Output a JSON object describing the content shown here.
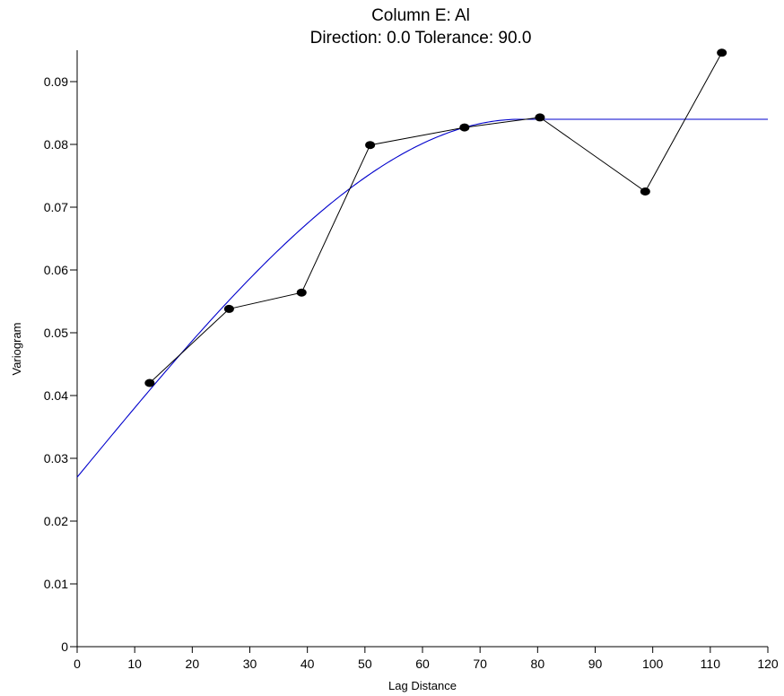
{
  "chart_data": {
    "type": "scatter",
    "title": "Column E:  Al",
    "subtitle": "Direction: 0.0    Tolerance: 90.0",
    "xlabel": "Lag Distance",
    "ylabel": "Variogram",
    "xlim": [
      0,
      120
    ],
    "ylim": [
      0,
      0.095
    ],
    "x_ticks": [
      "0",
      "10",
      "20",
      "30",
      "40",
      "50",
      "60",
      "70",
      "80",
      "90",
      "100",
      "110",
      "120"
    ],
    "y_ticks": [
      "0",
      "0.01",
      "0.02",
      "0.03",
      "0.04",
      "0.05",
      "0.06",
      "0.07",
      "0.08",
      "0.09"
    ],
    "grid": false,
    "series": [
      {
        "kind": "points",
        "color": "#000000",
        "x": [
          12.6,
          26.4,
          39.0,
          50.9,
          67.3,
          80.4,
          98.7,
          112.0
        ],
        "y": [
          0.042,
          0.0538,
          0.0564,
          0.0799,
          0.0827,
          0.0843,
          0.0725,
          0.0946
        ]
      },
      {
        "kind": "model",
        "color": "#0000cc",
        "nugget": 0.027,
        "sill": 0.084,
        "range": 77,
        "model": "spherical"
      }
    ]
  }
}
